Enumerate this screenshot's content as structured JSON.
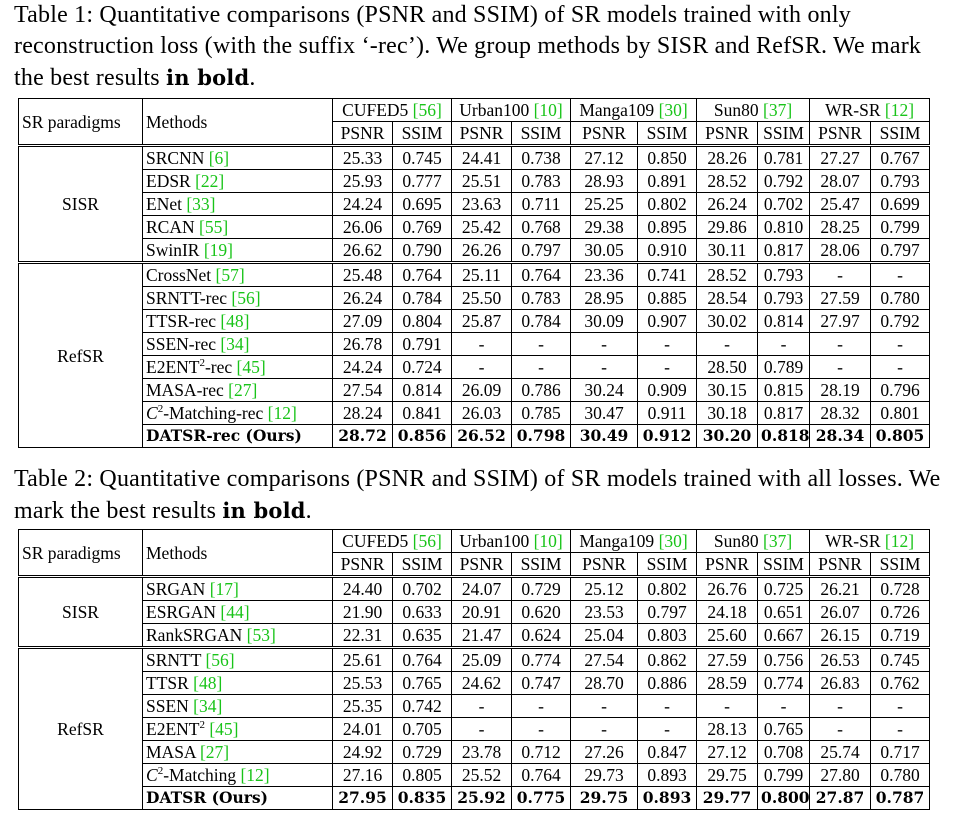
{
  "table1": {
    "caption_parts": [
      "Table 1: Quantitative comparisons (PSNR and SSIM) of SR models trained with only reconstruction loss (with the suffix ‘-rec’). We group methods by SISR and RefSR. We mark the best results ",
      "in bold",
      "."
    ],
    "header": {
      "paradigm": "SR paradigms",
      "methods": "Methods",
      "datasets": [
        {
          "name": "CUFED5 ",
          "cite": "[56]"
        },
        {
          "name": "Urban100 ",
          "cite": "[10]"
        },
        {
          "name": "Manga109 ",
          "cite": "[30]"
        },
        {
          "name": "Sun80 ",
          "cite": "[37]"
        },
        {
          "name": "WR-SR ",
          "cite": "[12]"
        }
      ],
      "metrics": [
        "PSNR",
        "SSIM",
        "PSNR",
        "SSIM",
        "PSNR",
        "SSIM",
        "PSNR",
        "SSIM",
        "PSNR",
        "SSIM"
      ]
    },
    "groups": [
      {
        "paradigm": "SISR",
        "rows": [
          {
            "method": "SRCNN ",
            "cite": "[6]",
            "values": [
              "25.33",
              "0.745",
              "24.41",
              "0.738",
              "27.12",
              "0.850",
              "28.26",
              "0.781",
              "27.27",
              "0.767"
            ]
          },
          {
            "method": "EDSR ",
            "cite": "[22]",
            "values": [
              "25.93",
              "0.777",
              "25.51",
              "0.783",
              "28.93",
              "0.891",
              "28.52",
              "0.792",
              "28.07",
              "0.793"
            ]
          },
          {
            "method": "ENet ",
            "cite": "[33]",
            "values": [
              "24.24",
              "0.695",
              "23.63",
              "0.711",
              "25.25",
              "0.802",
              "26.24",
              "0.702",
              "25.47",
              "0.699"
            ]
          },
          {
            "method": "RCAN ",
            "cite": "[55]",
            "values": [
              "26.06",
              "0.769",
              "25.42",
              "0.768",
              "29.38",
              "0.895",
              "29.86",
              "0.810",
              "28.25",
              "0.799"
            ]
          },
          {
            "method": "SwinIR ",
            "cite": "[19]",
            "values": [
              "26.62",
              "0.790",
              "26.26",
              "0.797",
              "30.05",
              "0.910",
              "30.11",
              "0.817",
              "28.06",
              "0.797"
            ]
          }
        ]
      },
      {
        "paradigm": "RefSR",
        "rows": [
          {
            "method": "CrossNet ",
            "cite": "[57]",
            "values": [
              "25.48",
              "0.764",
              "25.11",
              "0.764",
              "23.36",
              "0.741",
              "28.52",
              "0.793",
              "-",
              "-"
            ]
          },
          {
            "method": "SRNTT-rec ",
            "cite": "[56]",
            "values": [
              "26.24",
              "0.784",
              "25.50",
              "0.783",
              "28.95",
              "0.885",
              "28.54",
              "0.793",
              "27.59",
              "0.780"
            ]
          },
          {
            "method": "TTSR-rec ",
            "cite": "[48]",
            "values": [
              "27.09",
              "0.804",
              "25.87",
              "0.784",
              "30.09",
              "0.907",
              "30.02",
              "0.814",
              "27.97",
              "0.792"
            ]
          },
          {
            "method": "SSEN-rec ",
            "cite": "[34]",
            "values": [
              "26.78",
              "0.791",
              "-",
              "-",
              "-",
              "-",
              "-",
              "-",
              "-",
              "-"
            ]
          },
          {
            "method": "E2ENT",
            "sup": "2",
            "method_tail": "-rec ",
            "cite": "[45]",
            "values": [
              "24.24",
              "0.724",
              "-",
              "-",
              "-",
              "-",
              "28.50",
              "0.789",
              "-",
              "-"
            ]
          },
          {
            "method": "MASA-rec ",
            "cite": "[27]",
            "values": [
              "27.54",
              "0.814",
              "26.09",
              "0.786",
              "30.24",
              "0.909",
              "30.15",
              "0.815",
              "28.19",
              "0.796"
            ]
          },
          {
            "method": "C",
            "sup": "2",
            "method_tail": "-Matching-rec ",
            "cite": "[12]",
            "math": true,
            "values": [
              "28.24",
              "0.841",
              "26.03",
              "0.785",
              "30.47",
              "0.911",
              "30.18",
              "0.817",
              "28.32",
              "0.801"
            ]
          },
          {
            "method": "DATSR-rec (Ours)",
            "best": true,
            "values": [
              "28.72",
              "0.856",
              "26.52",
              "0.798",
              "30.49",
              "0.912",
              "30.20",
              "0.818",
              "28.34",
              "0.805"
            ]
          }
        ]
      }
    ]
  },
  "table2": {
    "caption_parts": [
      "Table 2: Quantitative comparisons (PSNR and SSIM) of SR models trained with all losses. We mark the best results ",
      "in bold",
      "."
    ],
    "header": {
      "paradigm": "SR paradigms",
      "methods": "Methods",
      "datasets": [
        {
          "name": "CUFED5 ",
          "cite": "[56]"
        },
        {
          "name": "Urban100 ",
          "cite": "[10]"
        },
        {
          "name": "Manga109 ",
          "cite": "[30]"
        },
        {
          "name": "Sun80 ",
          "cite": "[37]"
        },
        {
          "name": "WR-SR ",
          "cite": "[12]"
        }
      ],
      "metrics": [
        "PSNR",
        "SSIM",
        "PSNR",
        "SSIM",
        "PSNR",
        "SSIM",
        "PSNR",
        "SSIM",
        "PSNR",
        "SSIM"
      ]
    },
    "groups": [
      {
        "paradigm": "SISR",
        "rows": [
          {
            "method": "SRGAN ",
            "cite": "[17]",
            "values": [
              "24.40",
              "0.702",
              "24.07",
              "0.729",
              "25.12",
              "0.802",
              "26.76",
              "0.725",
              "26.21",
              "0.728"
            ]
          },
          {
            "method": "ESRGAN ",
            "cite": "[44]",
            "values": [
              "21.90",
              "0.633",
              "20.91",
              "0.620",
              "23.53",
              "0.797",
              "24.18",
              "0.651",
              "26.07",
              "0.726"
            ]
          },
          {
            "method": "RankSRGAN ",
            "cite": "[53]",
            "values": [
              "22.31",
              "0.635",
              "21.47",
              "0.624",
              "25.04",
              "0.803",
              "25.60",
              "0.667",
              "26.15",
              "0.719"
            ]
          }
        ]
      },
      {
        "paradigm": "RefSR",
        "rows": [
          {
            "method": "SRNTT ",
            "cite": "[56]",
            "values": [
              "25.61",
              "0.764",
              "25.09",
              "0.774",
              "27.54",
              "0.862",
              "27.59",
              "0.756",
              "26.53",
              "0.745"
            ]
          },
          {
            "method": "TTSR ",
            "cite": "[48]",
            "values": [
              "25.53",
              "0.765",
              "24.62",
              "0.747",
              "28.70",
              "0.886",
              "28.59",
              "0.774",
              "26.83",
              "0.762"
            ]
          },
          {
            "method": "SSEN ",
            "cite": "[34]",
            "values": [
              "25.35",
              "0.742",
              "-",
              "-",
              "-",
              "-",
              "-",
              "-",
              "-",
              "-"
            ]
          },
          {
            "method": "E2ENT",
            "sup": "2",
            "method_tail": " ",
            "cite": "[45]",
            "values": [
              "24.01",
              "0.705",
              "-",
              "-",
              "-",
              "-",
              "28.13",
              "0.765",
              "-",
              "-"
            ]
          },
          {
            "method": "MASA ",
            "cite": "[27]",
            "values": [
              "24.92",
              "0.729",
              "23.78",
              "0.712",
              "27.26",
              "0.847",
              "27.12",
              "0.708",
              "25.74",
              "0.717"
            ]
          },
          {
            "method": "C",
            "sup": "2",
            "method_tail": "-Matching ",
            "cite": "[12]",
            "math": true,
            "values": [
              "27.16",
              "0.805",
              "25.52",
              "0.764",
              "29.73",
              "0.893",
              "29.75",
              "0.799",
              "27.80",
              "0.780"
            ]
          },
          {
            "method": "DATSR (Ours)",
            "best": true,
            "values": [
              "27.95",
              "0.835",
              "25.92",
              "0.775",
              "29.75",
              "0.893",
              "29.77",
              "0.800",
              "27.87",
              "0.787"
            ]
          }
        ]
      }
    ]
  }
}
